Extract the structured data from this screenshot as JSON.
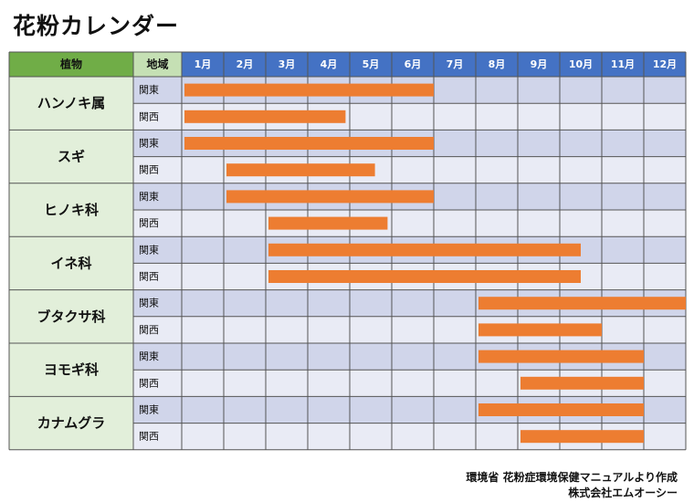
{
  "title": "花粉カレンダー",
  "header": {
    "plant": "植物",
    "region": "地域"
  },
  "source": {
    "line1": "環境省 花粉症環境保健マニュアルより作成",
    "line2": "株式会社エムオーシー"
  },
  "colors": {
    "header_green": "#70AD47",
    "header_light_green": "#C5E0B4",
    "header_blue": "#4472C4",
    "plant_cell": "#E2EFDA",
    "row_kanto": "#D0D5EA",
    "row_kansai": "#E9EBF5",
    "bar": "#ED7D31",
    "border": "#555555"
  },
  "chart_data": {
    "type": "table",
    "months": [
      "1月",
      "2月",
      "3月",
      "4月",
      "5月",
      "6月",
      "7月",
      "8月",
      "9月",
      "10月",
      "11月",
      "12月"
    ],
    "plants": [
      {
        "name": "ハンノキ属",
        "rows": [
          {
            "region": "関東",
            "start": 1.0,
            "end": 7.0
          },
          {
            "region": "関西",
            "start": 1.0,
            "end": 4.9
          }
        ]
      },
      {
        "name": "スギ",
        "rows": [
          {
            "region": "関東",
            "start": 1.0,
            "end": 7.0
          },
          {
            "region": "関西",
            "start": 2.0,
            "end": 5.6
          }
        ]
      },
      {
        "name": "ヒノキ科",
        "rows": [
          {
            "region": "関東",
            "start": 2.0,
            "end": 7.0
          },
          {
            "region": "関西",
            "start": 3.0,
            "end": 5.9
          }
        ]
      },
      {
        "name": "イネ科",
        "rows": [
          {
            "region": "関東",
            "start": 3.0,
            "end": 10.5
          },
          {
            "region": "関西",
            "start": 3.0,
            "end": 10.5
          }
        ]
      },
      {
        "name": "ブタクサ科",
        "rows": [
          {
            "region": "関東",
            "start": 8.0,
            "end": 13.0
          },
          {
            "region": "関西",
            "start": 8.0,
            "end": 11.0
          }
        ]
      },
      {
        "name": "ヨモギ科",
        "rows": [
          {
            "region": "関東",
            "start": 8.0,
            "end": 12.0
          },
          {
            "region": "関西",
            "start": 9.0,
            "end": 12.0
          }
        ]
      },
      {
        "name": "カナムグラ",
        "rows": [
          {
            "region": "関東",
            "start": 8.0,
            "end": 12.0
          },
          {
            "region": "関西",
            "start": 9.0,
            "end": 12.0
          }
        ]
      }
    ]
  }
}
